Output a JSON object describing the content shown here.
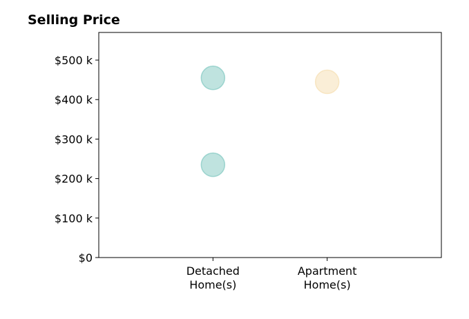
{
  "chart_data": {
    "type": "scatter",
    "title": "Selling Price",
    "xlabel": "",
    "ylabel": "",
    "categories": [
      [
        "Detached",
        "Home(s)"
      ],
      [
        "Apartment",
        "Home(s)"
      ]
    ],
    "x_range": [
      0,
      3
    ],
    "x_positions": [
      1,
      2
    ],
    "ylim": [
      0,
      570000
    ],
    "yticks": [
      0,
      100000,
      200000,
      300000,
      400000,
      500000
    ],
    "ytick_labels": [
      "$0",
      "$100 k",
      "$200 k",
      "$300 k",
      "$400 k",
      "$500 k"
    ],
    "grid": false,
    "legend": "none",
    "points": [
      {
        "category": "Detached Home(s)",
        "x": 1,
        "y": 455000,
        "color": "#7fc8c0"
      },
      {
        "category": "Detached Home(s)",
        "x": 1,
        "y": 235000,
        "color": "#7fc8c0"
      },
      {
        "category": "Apartment Home(s)",
        "x": 2,
        "y": 445000,
        "color": "#f5deb0"
      }
    ]
  }
}
